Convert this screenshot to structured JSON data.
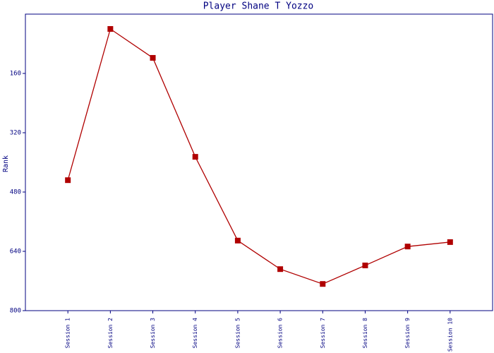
{
  "chart_data": {
    "type": "line",
    "title": "Player Shane T Yozzo",
    "y_label": "Rank",
    "categories": [
      "Session 1",
      "Session 2",
      "Session 3",
      "Session 4",
      "Session 5",
      "Session 6",
      "Session 7",
      "Session 8",
      "Session 9",
      "Session 10"
    ],
    "series": [
      {
        "name": "Rank",
        "color": "#b00000",
        "values": [
          448,
          40,
          118,
          385,
          611,
          688,
          728,
          678,
          627,
          615
        ]
      }
    ],
    "ylim": [
      800,
      0
    ],
    "yticks": [
      160,
      320,
      480,
      640,
      800
    ],
    "y_inverted": true,
    "frame_color": "#000080"
  }
}
